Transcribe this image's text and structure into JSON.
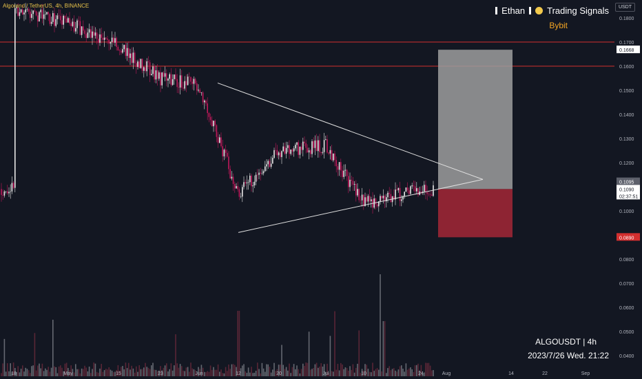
{
  "header": {
    "title": "Algorand / TetherUS, 4h, BINANCE"
  },
  "branding": {
    "name_left": "Ethan",
    "name_right": "Trading Signals",
    "exchange": "Bybit"
  },
  "axis_unit": "USDT",
  "footer": {
    "symbol": "ALGOUSDT | 4h",
    "datetime": "2023/7/26 Wed. 21:22"
  },
  "colors": {
    "background": "#131722",
    "candle_up": "#e8e8e8",
    "candle_down": "#c2185b",
    "resistance": "#d32f2f",
    "target_zone": "#9e9e9e",
    "stop_zone": "#8e2433",
    "triangle": "#e0e0e0"
  },
  "chart_data": {
    "type": "candlestick",
    "y_axis": {
      "position": "right",
      "ticks": [
        "0.1800",
        "0.1700",
        "0.1600",
        "0.1500",
        "0.1400",
        "0.1300",
        "0.1200",
        "0.1100",
        "0.1000",
        "0.0900",
        "0.0800",
        "0.0700",
        "0.0600",
        "0.0500",
        "0.0400"
      ],
      "ylim": [
        0.0385,
        0.186
      ]
    },
    "x_axis": {
      "ticks": [
        "18",
        "May",
        "15",
        "23",
        "Jun",
        "12",
        "20",
        "Jul",
        "10",
        "24",
        "Aug",
        "14",
        "22",
        "Sep"
      ]
    },
    "price_path": [
      [
        "18",
        0.184
      ],
      [
        "May",
        0.178
      ],
      [
        "15",
        0.168
      ],
      [
        "23",
        0.155
      ],
      [
        "Jun",
        0.152
      ],
      [
        "12",
        0.107
      ],
      [
        "20",
        0.125
      ],
      [
        "Jul",
        0.127
      ],
      [
        "10",
        0.103
      ],
      [
        "24",
        0.109
      ]
    ],
    "resistance_levels": [
      0.17,
      0.16
    ],
    "triangle": {
      "upper_start": [
        "Jun",
        0.153
      ],
      "lower_start": [
        "12",
        0.091
      ],
      "apex": [
        "Aug",
        0.113
      ]
    },
    "position_box": {
      "entry": 0.109,
      "target": 0.1668,
      "stop": 0.089
    },
    "price_labels": [
      {
        "text": "0.1668",
        "value": 0.1668,
        "style": "light"
      },
      {
        "text": "0.1095",
        "value": 0.1095,
        "style": "gray"
      },
      {
        "text": "0.1090",
        "value": 0.109,
        "style": "light"
      },
      {
        "text": "02:37:51",
        "value": 0.109,
        "style": "light-sub"
      },
      {
        "text": "0.0890",
        "value": 0.089,
        "style": "red"
      }
    ]
  }
}
